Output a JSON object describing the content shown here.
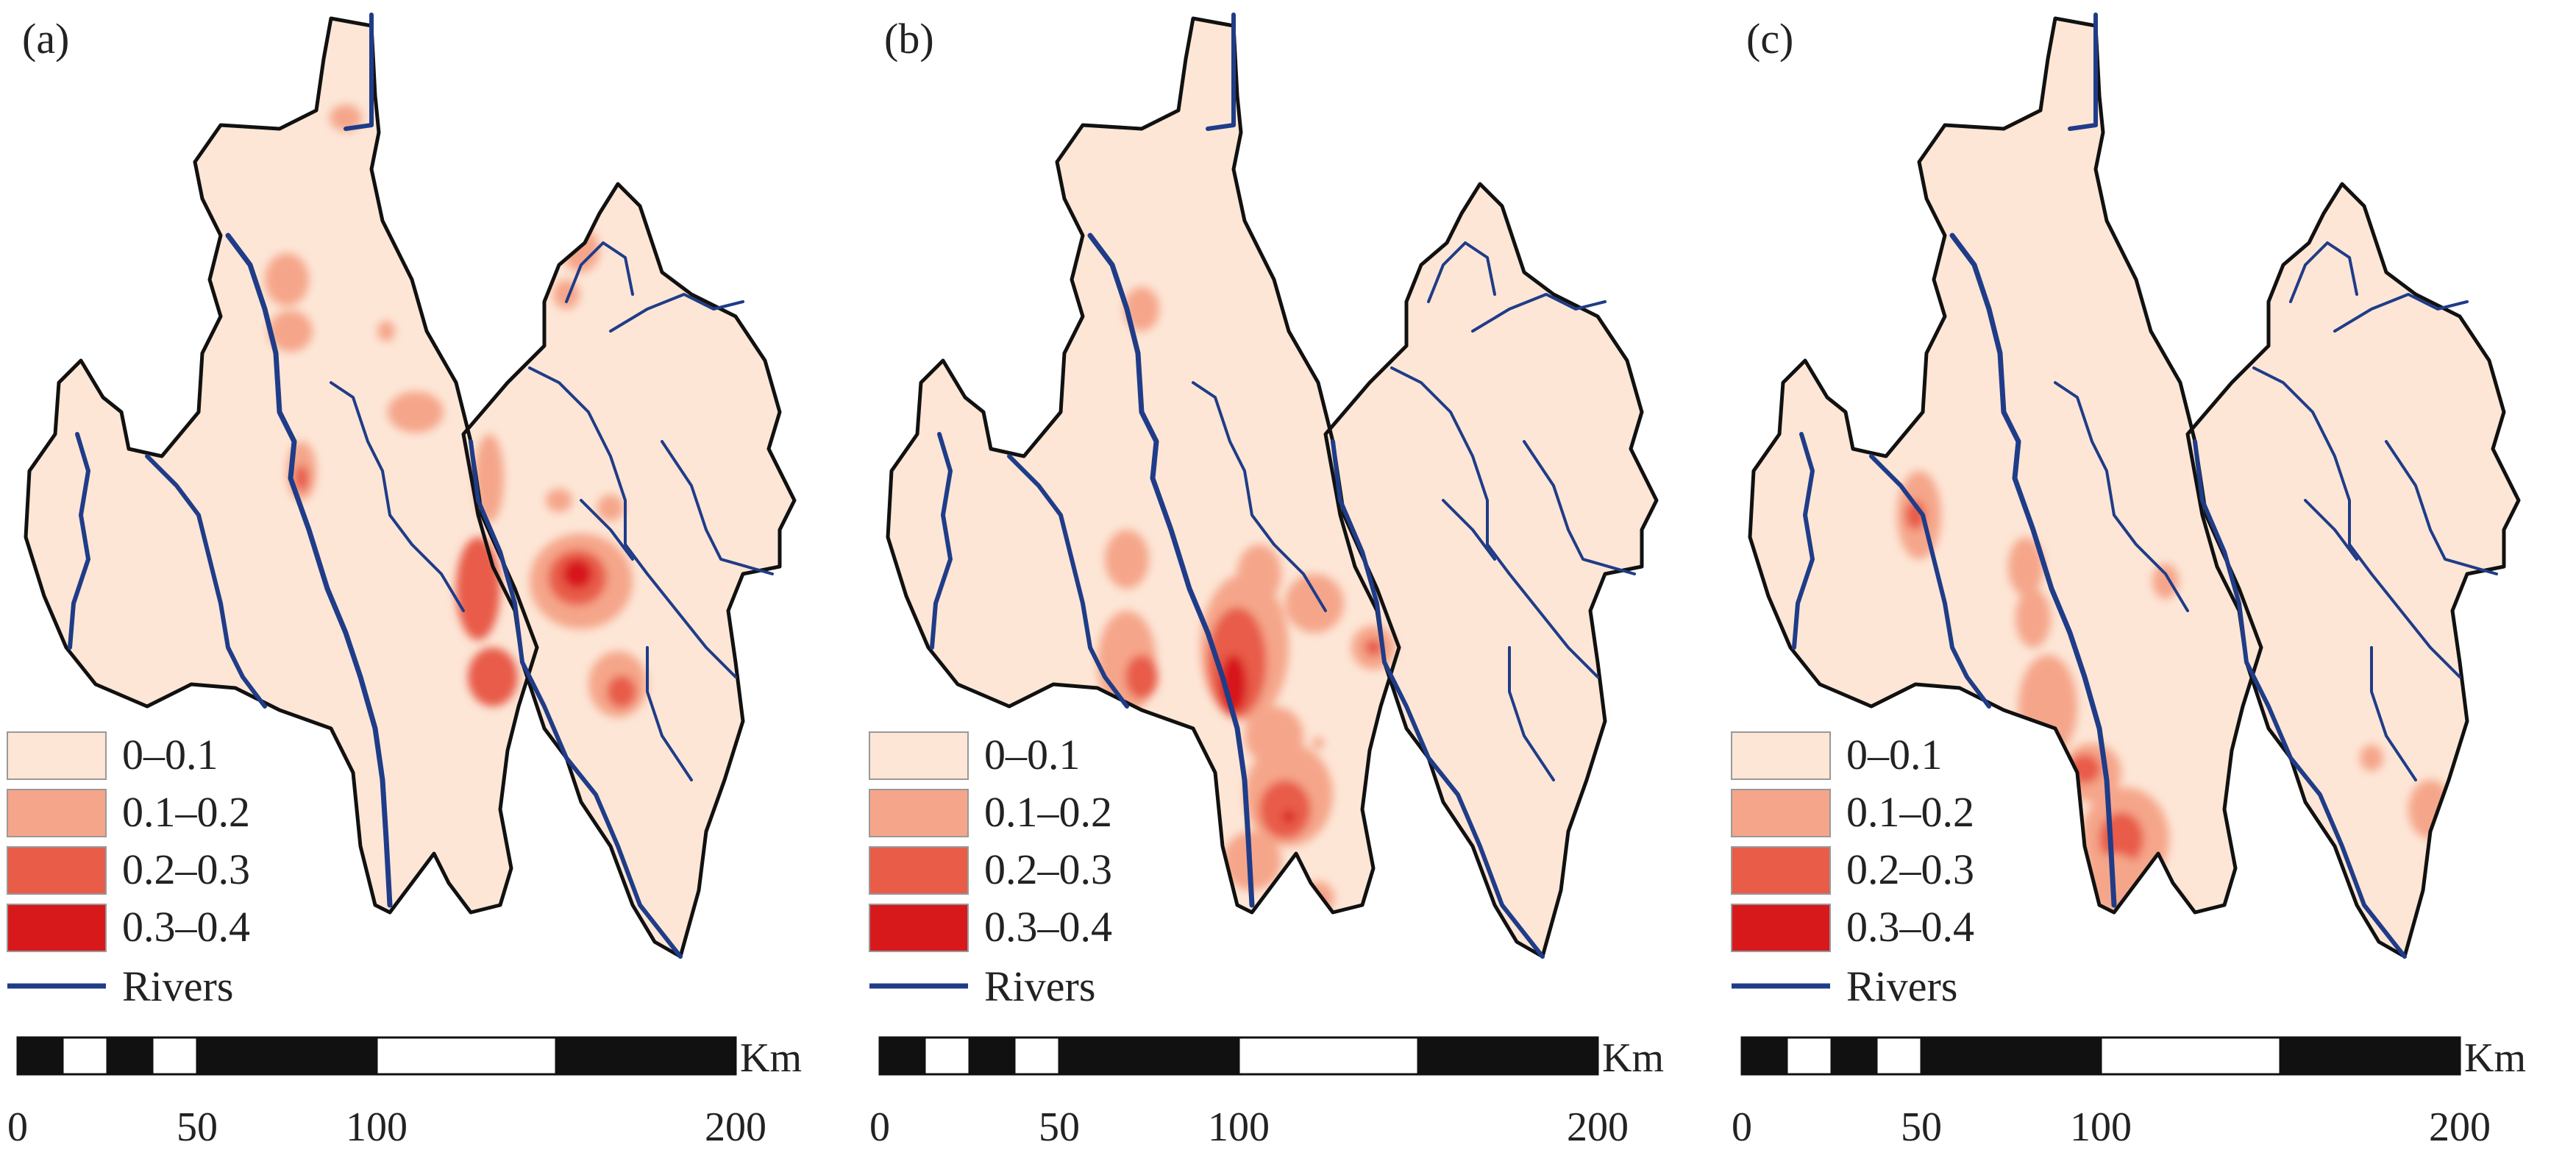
{
  "panels": [
    {
      "label": "(a)"
    },
    {
      "label": "(b)"
    },
    {
      "label": "(c)"
    }
  ],
  "legend": {
    "classes": [
      {
        "label": "0–0.1",
        "color": "#fde6d6"
      },
      {
        "label": "0.1–0.2",
        "color": "#f5a68a"
      },
      {
        "label": "0.2–0.3",
        "color": "#e85c48"
      },
      {
        "label": "0.3–0.4",
        "color": "#d7191c"
      }
    ],
    "rivers_label": "Rivers",
    "river_color": "#1f3c88"
  },
  "scale_bar": {
    "unit": "Km",
    "ticks": [
      "0",
      "50",
      "100",
      "200"
    ],
    "tick_values": [
      0,
      50,
      100,
      200
    ]
  }
}
